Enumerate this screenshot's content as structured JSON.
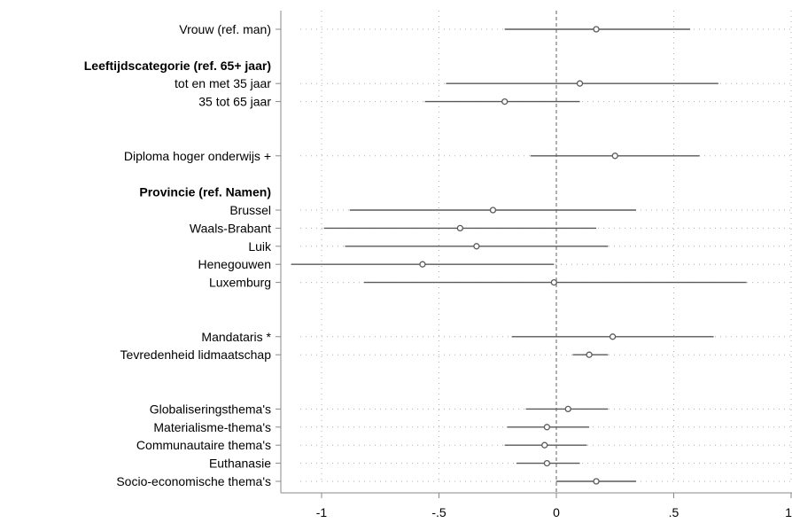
{
  "chart_data": {
    "type": "coefficient-plot",
    "title": "",
    "xlabel": "",
    "ylabel": "",
    "xlim": [
      -1.22,
      1.0
    ],
    "x_ticks": [
      {
        "value": -1,
        "label": "-1"
      },
      {
        "value": -0.5,
        "label": "-.5"
      },
      {
        "value": 0,
        "label": "0"
      },
      {
        "value": 0.5,
        "label": ".5"
      },
      {
        "value": 1,
        "label": "1"
      }
    ],
    "reference_line": 0,
    "grid": true,
    "rows": [
      {
        "label": "Vrouw (ref. man)",
        "header": false,
        "estimate": 0.17,
        "lo": -0.22,
        "hi": 0.57,
        "row": 1
      },
      {
        "label": "Leeftijdscategorie (ref. 65+ jaar)",
        "header": true,
        "row": 3
      },
      {
        "label": "tot en met 35 jaar",
        "header": false,
        "estimate": 0.1,
        "lo": -0.47,
        "hi": 0.69,
        "row": 4
      },
      {
        "label": "35 tot 65 jaar",
        "header": false,
        "estimate": -0.22,
        "lo": -0.56,
        "hi": 0.1,
        "row": 5
      },
      {
        "label": "Diploma hoger onderwijs +",
        "header": false,
        "estimate": 0.25,
        "lo": -0.11,
        "hi": 0.61,
        "row": 8
      },
      {
        "label": "Provincie (ref. Namen)",
        "header": true,
        "row": 10
      },
      {
        "label": "Brussel",
        "header": false,
        "estimate": -0.27,
        "lo": -0.88,
        "hi": 0.34,
        "row": 11
      },
      {
        "label": "Waals-Brabant",
        "header": false,
        "estimate": -0.41,
        "lo": -0.99,
        "hi": 0.17,
        "row": 12
      },
      {
        "label": "Luik",
        "header": false,
        "estimate": -0.34,
        "lo": -0.9,
        "hi": 0.22,
        "row": 13
      },
      {
        "label": "Henegouwen",
        "header": false,
        "estimate": -0.57,
        "lo": -1.13,
        "hi": -0.01,
        "row": 14
      },
      {
        "label": "Luxemburg",
        "header": false,
        "estimate": -0.01,
        "lo": -0.82,
        "hi": 0.81,
        "row": 15
      },
      {
        "label": "Mandataris *",
        "header": false,
        "estimate": 0.24,
        "lo": -0.19,
        "hi": 0.67,
        "row": 18
      },
      {
        "label": "Tevredenheid lidmaatschap",
        "header": false,
        "estimate": 0.14,
        "lo": 0.07,
        "hi": 0.22,
        "row": 19
      },
      {
        "label": "Globaliseringsthema's",
        "header": false,
        "estimate": 0.05,
        "lo": -0.13,
        "hi": 0.22,
        "row": 22
      },
      {
        "label": "Materialisme-thema's",
        "header": false,
        "estimate": -0.04,
        "lo": -0.21,
        "hi": 0.14,
        "row": 23
      },
      {
        "label": "Communautaire thema's",
        "header": false,
        "estimate": -0.05,
        "lo": -0.22,
        "hi": 0.13,
        "row": 24
      },
      {
        "label": "Euthanasie",
        "header": false,
        "estimate": -0.04,
        "lo": -0.17,
        "hi": 0.1,
        "row": 25
      },
      {
        "label": "Socio-economische thema's",
        "header": false,
        "estimate": 0.17,
        "lo": 0.0,
        "hi": 0.34,
        "row": 26
      }
    ]
  },
  "colors": {
    "ci_line": "#5a5a5a",
    "marker": "#5a5a5a",
    "axis": "#888888",
    "grid": "#b0b0b0",
    "reference_line": "#606060",
    "text": "#000000"
  }
}
